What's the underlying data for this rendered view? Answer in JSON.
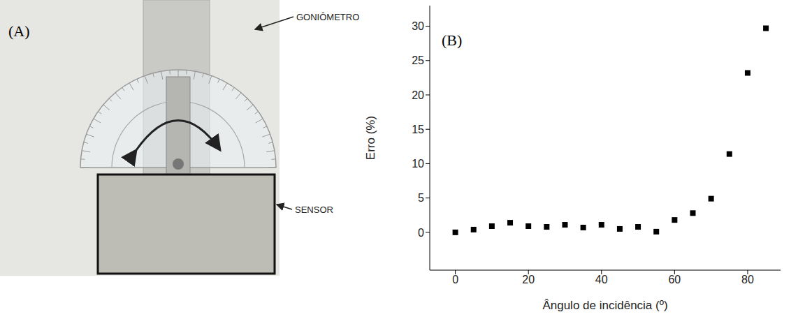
{
  "panel_a": {
    "panel_label": "(A)",
    "labels": {
      "goniometer": "GONIÔMETRO",
      "sensor": "SENSOR"
    }
  },
  "chart_data": {
    "type": "scatter",
    "panel_label": "(B)",
    "x_label": "Ângulo de incidência (º)",
    "y_label": "Erro (%)",
    "x": [
      0,
      5,
      10,
      15,
      20,
      25,
      30,
      35,
      40,
      45,
      50,
      55,
      60,
      65,
      70,
      75,
      80,
      85
    ],
    "values": [
      0.0,
      0.4,
      0.9,
      1.4,
      0.9,
      0.8,
      1.1,
      0.7,
      1.1,
      0.5,
      0.8,
      0.1,
      1.8,
      2.8,
      4.9,
      11.4,
      23.2,
      29.7
    ],
    "color": "#000000",
    "marker": "square",
    "xlim": [
      -7,
      89
    ],
    "xticks": [
      0,
      20,
      40,
      60,
      80
    ],
    "ylim": [
      -5.5,
      33
    ],
    "yticks": [
      0,
      5,
      10,
      15,
      20,
      25,
      30
    ],
    "grid": false
  }
}
